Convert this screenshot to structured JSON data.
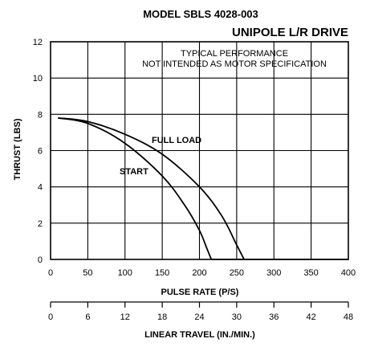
{
  "chart_data": {
    "type": "line",
    "title": "MODEL SBLS 4028-003",
    "subtitle": "UNIPOLE L/R DRIVE",
    "annotation_lines": [
      "TYPICAL PERFORMANCE",
      "NOT INTENDED AS MOTOR SPECIFICATION"
    ],
    "xlabel": "PULSE RATE (P/S)",
    "ylabel": "THRUST (LBS)",
    "secondary_xlabel": "LINEAR TRAVEL (IN./MIN.)",
    "xlim": [
      0,
      400
    ],
    "ylim": [
      0,
      12
    ],
    "x_ticks": [
      "0",
      "50",
      "100",
      "150",
      "200",
      "250",
      "300",
      "350",
      "400"
    ],
    "y_ticks": [
      "0",
      "2",
      "4",
      "6",
      "8",
      "10",
      "12"
    ],
    "secondary_ticks": [
      "0",
      "6",
      "12",
      "18",
      "24",
      "30",
      "36",
      "42",
      "48"
    ],
    "grid": true,
    "series": [
      {
        "name": "FULL LOAD",
        "x": [
          10,
          50,
          100,
          150,
          200,
          230,
          250,
          260
        ],
        "y": [
          7.8,
          7.6,
          6.9,
          5.8,
          4.0,
          2.4,
          0.8,
          0.0
        ]
      },
      {
        "name": "START",
        "x": [
          10,
          50,
          100,
          150,
          180,
          200,
          210,
          216
        ],
        "y": [
          7.8,
          7.5,
          6.4,
          4.6,
          3.0,
          1.6,
          0.6,
          0.0
        ]
      },
      {
        "name": "",
        "x": [
          216,
          300,
          400
        ],
        "y": [
          0.0,
          0.0,
          0.0
        ]
      }
    ]
  }
}
